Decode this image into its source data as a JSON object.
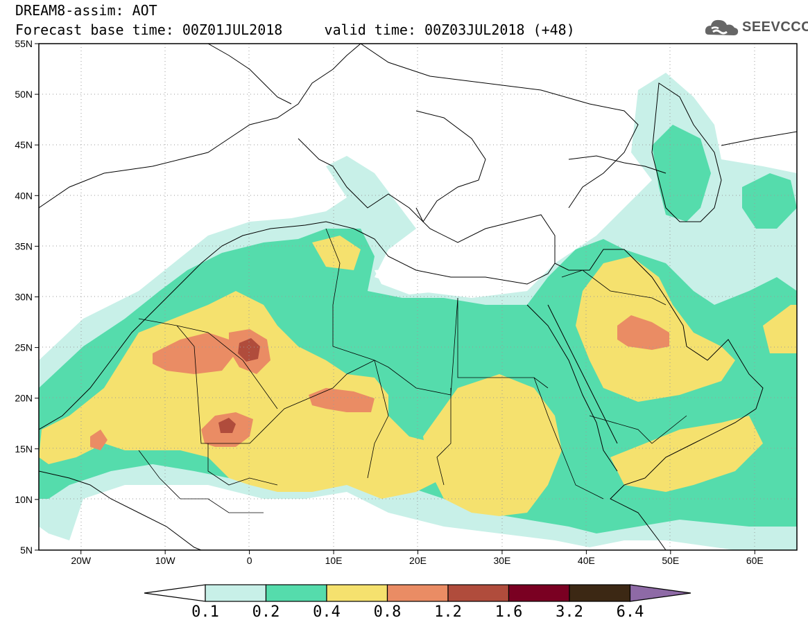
{
  "title": {
    "line1": "DREAM8-assim: AOT",
    "base_time_label": "Forecast base time: 00Z01JUL2018",
    "valid_time_label": "valid time: 00Z03JUL2018 (+48)"
  },
  "logo": {
    "text": "SEEVCCC",
    "icon": "cloud-icon"
  },
  "map": {
    "lon_range": [
      -25,
      65
    ],
    "lat_range": [
      5,
      55
    ],
    "lat_ticks": [
      {
        "value": 55,
        "label": "55N"
      },
      {
        "value": 50,
        "label": "50N"
      },
      {
        "value": 45,
        "label": "45N"
      },
      {
        "value": 40,
        "label": "40N"
      },
      {
        "value": 35,
        "label": "35N"
      },
      {
        "value": 30,
        "label": "30N"
      },
      {
        "value": 25,
        "label": "25N"
      },
      {
        "value": 20,
        "label": "20N"
      },
      {
        "value": 15,
        "label": "15N"
      },
      {
        "value": 10,
        "label": "10N"
      },
      {
        "value": 5,
        "label": "5N"
      }
    ],
    "lon_ticks": [
      {
        "value": -20,
        "label": "20W"
      },
      {
        "value": -10,
        "label": "10W"
      },
      {
        "value": 0,
        "label": "0"
      },
      {
        "value": 10,
        "label": "10E"
      },
      {
        "value": 20,
        "label": "20E"
      },
      {
        "value": 30,
        "label": "30E"
      },
      {
        "value": 40,
        "label": "40E"
      },
      {
        "value": 50,
        "label": "50E"
      },
      {
        "value": 60,
        "label": "60E"
      }
    ],
    "grid": "dotted"
  },
  "colorbar": {
    "labels": [
      "0.1",
      "0.2",
      "0.4",
      "0.8",
      "1.2",
      "1.6",
      "3.2",
      "6.4"
    ],
    "colors": [
      "#ffffff",
      "#c8f0e8",
      "#55dcac",
      "#f5e16e",
      "#ea8c64",
      "#b04c3c",
      "#7a0022",
      "#3c2814",
      "#8e6aa6"
    ]
  }
}
